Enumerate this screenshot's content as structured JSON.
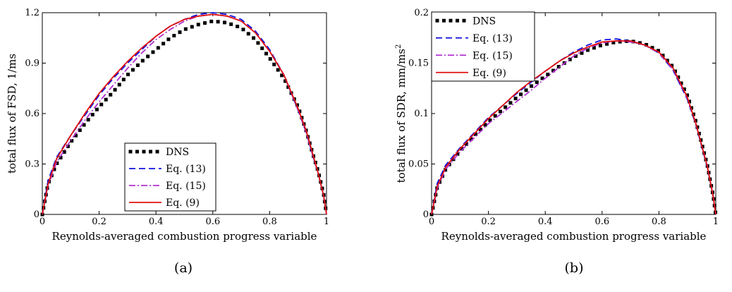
{
  "chart_data": [
    {
      "type": "line",
      "panel_label": "(a)",
      "xlabel": "Reynolds-averaged combustion progress variable",
      "ylabel": "total flux of FSD, 1/ms",
      "xlim": [
        0,
        1
      ],
      "ylim": [
        0,
        1.2
      ],
      "xticks": [
        "0",
        "0.2",
        "0.4",
        "0.6",
        "0.8",
        "1"
      ],
      "yticks": [
        "0",
        "0.3",
        "0.6",
        "0.9",
        "1.2"
      ],
      "grid": false,
      "legend_position": "bottom-center",
      "series": [
        {
          "name": "DNS",
          "color": "#000000",
          "style": "dotted-square",
          "x": [
            0,
            0.02,
            0.05,
            0.1,
            0.15,
            0.2,
            0.25,
            0.3,
            0.35,
            0.4,
            0.45,
            0.5,
            0.55,
            0.6,
            0.65,
            0.7,
            0.75,
            0.8,
            0.85,
            0.9,
            0.93,
            0.95,
            0.97,
            0.99,
            1.0
          ],
          "y": [
            0,
            0.18,
            0.3,
            0.43,
            0.54,
            0.64,
            0.73,
            0.83,
            0.91,
            0.98,
            1.05,
            1.1,
            1.13,
            1.15,
            1.14,
            1.11,
            1.04,
            0.93,
            0.81,
            0.64,
            0.49,
            0.37,
            0.26,
            0.12,
            0
          ]
        },
        {
          "name": "Eq. (13)",
          "color": "#1010e0",
          "style": "dashed",
          "x": [
            0,
            0.02,
            0.05,
            0.1,
            0.15,
            0.2,
            0.25,
            0.3,
            0.35,
            0.4,
            0.45,
            0.5,
            0.55,
            0.6,
            0.65,
            0.7,
            0.75,
            0.8,
            0.85,
            0.9,
            0.93,
            0.95,
            0.97,
            0.99,
            1.0
          ],
          "y": [
            0,
            0.2,
            0.34,
            0.47,
            0.59,
            0.71,
            0.81,
            0.9,
            0.98,
            1.06,
            1.12,
            1.16,
            1.19,
            1.2,
            1.19,
            1.16,
            1.09,
            0.98,
            0.83,
            0.62,
            0.48,
            0.36,
            0.25,
            0.11,
            0
          ]
        },
        {
          "name": "Eq. (15)",
          "color": "#b030d0",
          "style": "dashdot",
          "x": [
            0,
            0.02,
            0.05,
            0.1,
            0.15,
            0.2,
            0.25,
            0.3,
            0.35,
            0.4,
            0.45,
            0.5,
            0.55,
            0.6,
            0.65,
            0.7,
            0.75,
            0.8,
            0.85,
            0.9,
            0.93,
            0.95,
            0.97,
            0.99,
            1.0
          ],
          "y": [
            0,
            0.17,
            0.31,
            0.44,
            0.56,
            0.67,
            0.77,
            0.87,
            0.96,
            1.04,
            1.1,
            1.15,
            1.18,
            1.19,
            1.18,
            1.15,
            1.08,
            0.97,
            0.83,
            0.62,
            0.48,
            0.36,
            0.25,
            0.11,
            0
          ]
        },
        {
          "name": "Eq. (9)",
          "color": "#e01010",
          "style": "solid",
          "x": [
            0,
            0.02,
            0.05,
            0.1,
            0.15,
            0.2,
            0.25,
            0.3,
            0.35,
            0.4,
            0.45,
            0.5,
            0.55,
            0.6,
            0.65,
            0.7,
            0.75,
            0.8,
            0.85,
            0.9,
            0.93,
            0.95,
            0.97,
            0.99,
            1.0
          ],
          "y": [
            0,
            0.18,
            0.33,
            0.47,
            0.6,
            0.72,
            0.82,
            0.91,
            0.99,
            1.06,
            1.12,
            1.16,
            1.18,
            1.19,
            1.18,
            1.15,
            1.08,
            0.97,
            0.83,
            0.63,
            0.49,
            0.37,
            0.25,
            0.11,
            0
          ]
        }
      ]
    },
    {
      "type": "line",
      "panel_label": "(b)",
      "xlabel": "Reynolds-averaged combustion progress variable",
      "ylabel": "total flux of SDR, mm/ms",
      "ylabel_sup": "2",
      "xlim": [
        0,
        1
      ],
      "ylim": [
        0,
        0.2
      ],
      "xticks": [
        "0",
        "0.2",
        "0.4",
        "0.6",
        "0.8",
        "1"
      ],
      "yticks": [
        "0",
        "0.05",
        "0.1",
        "0.15",
        "0.2"
      ],
      "grid": false,
      "legend_position": "top-left",
      "series": [
        {
          "name": "DNS",
          "color": "#000000",
          "style": "dotted-square",
          "x": [
            0,
            0.02,
            0.05,
            0.1,
            0.15,
            0.2,
            0.25,
            0.3,
            0.35,
            0.4,
            0.45,
            0.5,
            0.55,
            0.6,
            0.65,
            0.7,
            0.75,
            0.8,
            0.85,
            0.9,
            0.93,
            0.95,
            0.97,
            0.99,
            1.0
          ],
          "y": [
            0,
            0.027,
            0.045,
            0.063,
            0.078,
            0.092,
            0.104,
            0.116,
            0.127,
            0.137,
            0.147,
            0.156,
            0.163,
            0.168,
            0.171,
            0.172,
            0.169,
            0.162,
            0.146,
            0.118,
            0.092,
            0.071,
            0.049,
            0.02,
            0
          ]
        },
        {
          "name": "Eq. (13)",
          "color": "#1010e0",
          "style": "dashed",
          "x": [
            0,
            0.02,
            0.05,
            0.1,
            0.15,
            0.2,
            0.25,
            0.3,
            0.35,
            0.4,
            0.45,
            0.5,
            0.55,
            0.6,
            0.65,
            0.7,
            0.75,
            0.8,
            0.85,
            0.9,
            0.93,
            0.95,
            0.97,
            0.99,
            1.0
          ],
          "y": [
            0,
            0.031,
            0.049,
            0.066,
            0.081,
            0.096,
            0.108,
            0.12,
            0.131,
            0.142,
            0.152,
            0.161,
            0.168,
            0.173,
            0.174,
            0.172,
            0.168,
            0.16,
            0.143,
            0.114,
            0.089,
            0.068,
            0.047,
            0.019,
            0
          ]
        },
        {
          "name": "Eq. (15)",
          "color": "#b030d0",
          "style": "dashdot",
          "x": [
            0,
            0.02,
            0.05,
            0.1,
            0.15,
            0.2,
            0.25,
            0.3,
            0.35,
            0.4,
            0.45,
            0.5,
            0.55,
            0.6,
            0.65,
            0.7,
            0.75,
            0.8,
            0.85,
            0.9,
            0.93,
            0.95,
            0.97,
            0.99,
            1.0
          ],
          "y": [
            0,
            0.026,
            0.045,
            0.062,
            0.076,
            0.09,
            0.101,
            0.112,
            0.123,
            0.135,
            0.146,
            0.157,
            0.165,
            0.17,
            0.172,
            0.171,
            0.168,
            0.16,
            0.144,
            0.115,
            0.09,
            0.069,
            0.048,
            0.019,
            0
          ]
        },
        {
          "name": "Eq. (9)",
          "color": "#e01010",
          "style": "solid",
          "x": [
            0,
            0.02,
            0.05,
            0.1,
            0.15,
            0.2,
            0.25,
            0.3,
            0.35,
            0.4,
            0.45,
            0.5,
            0.55,
            0.6,
            0.65,
            0.7,
            0.75,
            0.8,
            0.85,
            0.9,
            0.93,
            0.95,
            0.97,
            0.99,
            1.0
          ],
          "y": [
            0,
            0.028,
            0.047,
            0.065,
            0.08,
            0.095,
            0.108,
            0.121,
            0.132,
            0.142,
            0.152,
            0.16,
            0.166,
            0.171,
            0.172,
            0.172,
            0.168,
            0.161,
            0.145,
            0.116,
            0.09,
            0.069,
            0.048,
            0.019,
            0
          ]
        }
      ]
    }
  ]
}
